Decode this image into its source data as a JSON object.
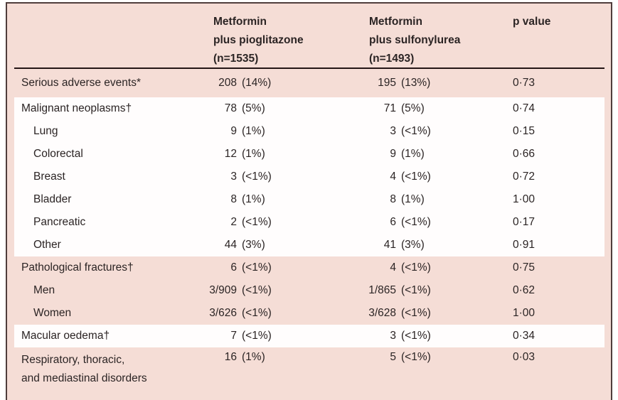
{
  "colors": {
    "panel_pink": "#f5ddd6",
    "band_white": "#fffdfd",
    "frame_border": "#4f3d3c",
    "header_rule": "#241515",
    "text": "#2b2424"
  },
  "table": {
    "header": {
      "col2": [
        "Metformin",
        "plus pioglitazone",
        "(n=1535)"
      ],
      "col3": [
        "Metformin",
        "plus sulfonylurea",
        "(n=1493)"
      ],
      "col4": "p value"
    },
    "rows": [
      {
        "label": "Serious adverse events*",
        "v1num": "208",
        "v1pct": "(14%)",
        "v2num": "195",
        "v2pct": "(13%)",
        "p": "0·73"
      },
      {
        "label": "Malignant neoplasms†",
        "v1num": "78",
        "v1pct": "(5%)",
        "v2num": "71",
        "v2pct": "(5%)",
        "p": "0·74"
      },
      {
        "label": "Lung",
        "v1num": "9",
        "v1pct": "(1%)",
        "v2num": "3",
        "v2pct": "(<1%)",
        "p": "0·15"
      },
      {
        "label": "Colorectal",
        "v1num": "12",
        "v1pct": "(1%)",
        "v2num": "9",
        "v2pct": "(1%)",
        "p": "0·66"
      },
      {
        "label": "Breast",
        "v1num": "3",
        "v1pct": "(<1%)",
        "v2num": "4",
        "v2pct": "(<1%)",
        "p": "0·72"
      },
      {
        "label": "Bladder",
        "v1num": "8",
        "v1pct": "(1%)",
        "v2num": "8",
        "v2pct": "(1%)",
        "p": "1·00"
      },
      {
        "label": "Pancreatic",
        "v1num": "2",
        "v1pct": "(<1%)",
        "v2num": "6",
        "v2pct": "(<1%)",
        "p": "0·17"
      },
      {
        "label": "Other",
        "v1num": "44",
        "v1pct": "(3%)",
        "v2num": "41",
        "v2pct": "(3%)",
        "p": "0·91"
      },
      {
        "label": "Pathological fractures†",
        "v1num": "6",
        "v1pct": "(<1%)",
        "v2num": "4",
        "v2pct": "(<1%)",
        "p": "0·75"
      },
      {
        "label": "Men",
        "v1num": "3/909",
        "v1pct": "(<1%)",
        "v2num": "1/865",
        "v2pct": "(<1%)",
        "p": "0·62"
      },
      {
        "label": "Women",
        "v1num": "3/626",
        "v1pct": "(<1%)",
        "v2num": "3/628",
        "v2pct": "(<1%)",
        "p": "1·00"
      },
      {
        "label": "Macular oedema†",
        "v1num": "7",
        "v1pct": "(<1%)",
        "v2num": "3",
        "v2pct": "(<1%)",
        "p": "0·34"
      },
      {
        "label": "Respiratory, thoracic,",
        "label2": "and mediastinal disorders",
        "v1num": "16",
        "v1pct": "(1%)",
        "v2num": "5",
        "v2pct": "(<1%)",
        "p": "0·03"
      }
    ]
  }
}
